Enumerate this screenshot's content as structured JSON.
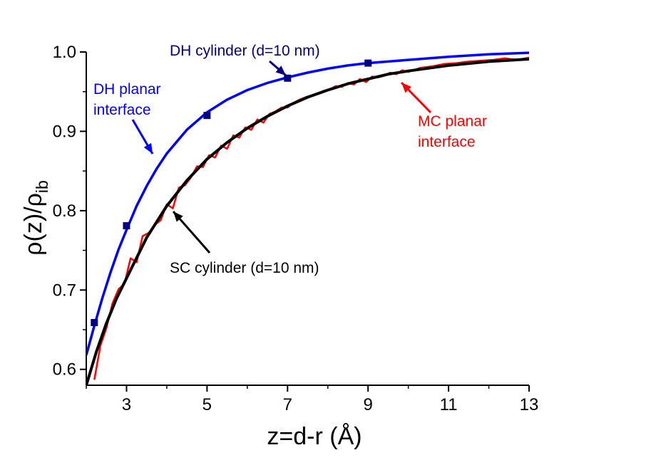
{
  "chart_data": {
    "type": "line",
    "xlabel": "z=d-r (Å)",
    "ylabel": {
      "main": "ρ(z)/ρ",
      "subscript": "ib"
    },
    "xlim": [
      2,
      13
    ],
    "ylim": [
      0.58,
      1.0
    ],
    "xticks": [
      3,
      5,
      7,
      9,
      11,
      13
    ],
    "xtick_labels": [
      "3",
      "5",
      "7",
      "9",
      "11",
      "13"
    ],
    "yticks": [
      0.6,
      0.7,
      0.8,
      0.9,
      1.0
    ],
    "ytick_labels": [
      "0.6",
      "0.7",
      "0.8",
      "0.9",
      "1.0"
    ],
    "grid": false,
    "colors": {
      "dh": "#0000ff",
      "sc": "#000000",
      "mc": "#ff0000",
      "markers": "#000080"
    },
    "series": [
      {
        "key": "dh_planar",
        "style": "line",
        "color": "#0000ff",
        "x": [
          2.0,
          2.2,
          2.4,
          2.6,
          2.8,
          3.0,
          3.25,
          3.5,
          3.75,
          4.0,
          4.5,
          5.0,
          5.5,
          6.0,
          6.5,
          7.0,
          7.5,
          8.0,
          8.5,
          9.0,
          10.0,
          11.0,
          12.0,
          13.0
        ],
        "y": [
          0.618,
          0.655,
          0.69,
          0.722,
          0.751,
          0.776,
          0.806,
          0.831,
          0.853,
          0.872,
          0.902,
          0.924,
          0.94,
          0.952,
          0.961,
          0.968,
          0.974,
          0.979,
          0.983,
          0.986,
          0.99,
          0.994,
          0.997,
          0.999
        ]
      },
      {
        "key": "sc_cylinder",
        "style": "line",
        "color": "#000000",
        "x": [
          2.0,
          2.25,
          2.5,
          2.75,
          3.0,
          3.5,
          4.0,
          4.5,
          5.0,
          5.5,
          6.0,
          6.5,
          7.0,
          7.5,
          8.0,
          8.5,
          9.0,
          9.5,
          10.0,
          11.0,
          12.0,
          13.0
        ],
        "y": [
          0.58,
          0.622,
          0.658,
          0.689,
          0.715,
          0.766,
          0.806,
          0.838,
          0.865,
          0.886,
          0.904,
          0.919,
          0.932,
          0.943,
          0.952,
          0.96,
          0.966,
          0.972,
          0.976,
          0.983,
          0.988,
          0.991
        ]
      },
      {
        "key": "mc_planar",
        "style": "noisy-line",
        "color": "#ff0000",
        "x": [
          2.2,
          2.35,
          2.5,
          2.65,
          2.8,
          2.95,
          3.1,
          3.25,
          3.4,
          3.55,
          3.7,
          3.85,
          4.0,
          4.15,
          4.3,
          4.45,
          4.6,
          4.75,
          4.9,
          5.05,
          5.2,
          5.35,
          5.5,
          5.65,
          5.8,
          5.95,
          6.1,
          6.25,
          6.4,
          6.55,
          6.7,
          6.85,
          7.0,
          7.15,
          7.3,
          7.45,
          7.6,
          7.75,
          7.9,
          8.05,
          8.2,
          8.35,
          8.5,
          8.65,
          8.8,
          8.95,
          9.1,
          9.25,
          9.4,
          9.55,
          9.7,
          9.85,
          10.0,
          10.3,
          10.6,
          10.9,
          11.2,
          11.5,
          11.8,
          12.1,
          12.4,
          12.7,
          13.0
        ],
        "y": [
          0.587,
          0.63,
          0.652,
          0.683,
          0.701,
          0.708,
          0.74,
          0.735,
          0.768,
          0.772,
          0.782,
          0.788,
          0.808,
          0.803,
          0.829,
          0.832,
          0.842,
          0.856,
          0.855,
          0.87,
          0.867,
          0.882,
          0.878,
          0.895,
          0.892,
          0.905,
          0.902,
          0.915,
          0.911,
          0.922,
          0.925,
          0.93,
          0.93,
          0.936,
          0.94,
          0.943,
          0.945,
          0.948,
          0.951,
          0.953,
          0.957,
          0.956,
          0.961,
          0.959,
          0.966,
          0.962,
          0.969,
          0.968,
          0.97,
          0.974,
          0.972,
          0.977,
          0.975,
          0.98,
          0.982,
          0.985,
          0.986,
          0.988,
          0.989,
          0.99,
          0.992,
          0.99,
          0.993
        ]
      },
      {
        "key": "dh_cylinder",
        "style": "markers",
        "color": "#000080",
        "x": [
          2.2,
          3.0,
          5.0,
          7.0,
          9.0
        ],
        "y": [
          0.659,
          0.781,
          0.92,
          0.967,
          0.986
        ]
      }
    ],
    "annotations": [
      {
        "key": "dh_planar",
        "lines": [
          "DH planar",
          "interface"
        ],
        "color": "#0000ff"
      },
      {
        "key": "dh_cylinder",
        "lines": [
          "DH cylinder (d=10 nm)"
        ],
        "color": "#000080"
      },
      {
        "key": "mc_planar",
        "lines": [
          "MC planar",
          "interface"
        ],
        "color": "#ff0000"
      },
      {
        "key": "sc_cylinder",
        "lines": [
          "SC cylinder (d=10 nm)"
        ],
        "color": "#000000"
      }
    ]
  }
}
